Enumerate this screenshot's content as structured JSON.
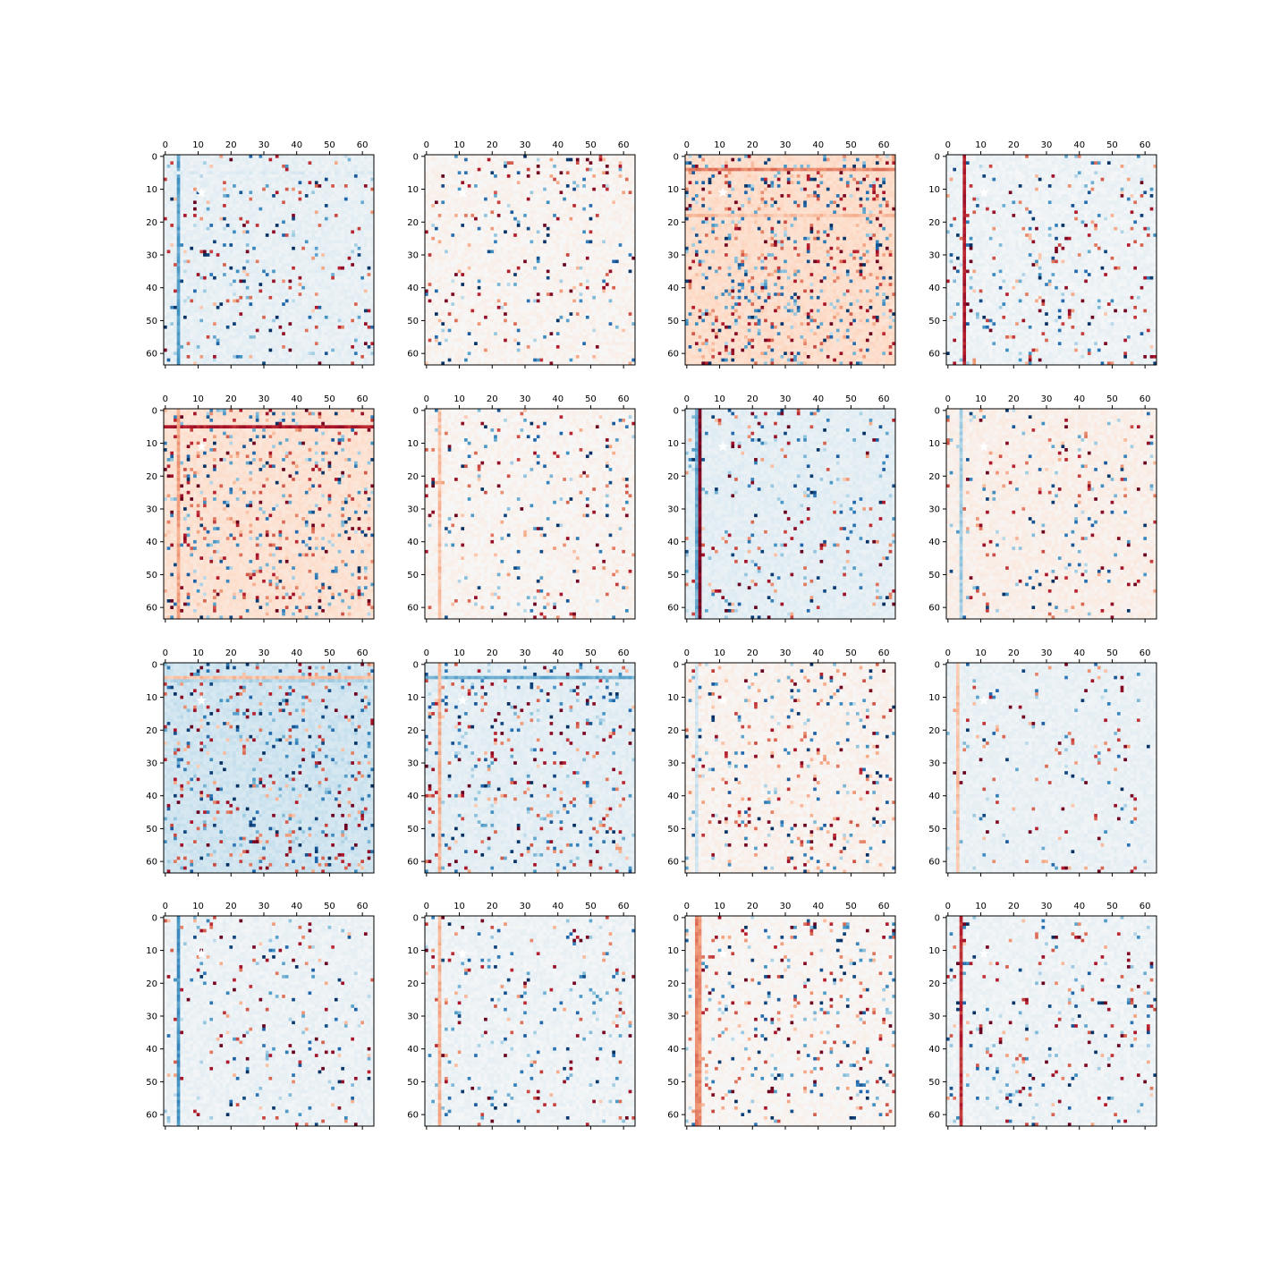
{
  "figure": {
    "background": "#ffffff",
    "grid_rows": 4,
    "grid_cols": 4
  },
  "chart_data": {
    "type": "heatmap",
    "count": 16,
    "matrix_size": [
      64,
      64
    ],
    "colormap": "RdBu_r",
    "colormap_stops": [
      "#053061",
      "#2166ac",
      "#4393c3",
      "#92c5de",
      "#d1e5f0",
      "#f7f7f7",
      "#fddbc7",
      "#f4a582",
      "#d6604d",
      "#b2182b",
      "#67001f"
    ],
    "value_range": [
      -1,
      1
    ],
    "x_axis_position": "top",
    "x_ticks": [
      0,
      10,
      20,
      30,
      40,
      50,
      60
    ],
    "y_ticks": [
      0,
      10,
      20,
      30,
      40,
      50,
      60
    ],
    "x_tick_labels": [
      "0",
      "10",
      "20",
      "30",
      "40",
      "50",
      "60"
    ],
    "y_tick_labels": [
      "0",
      "10",
      "20",
      "30",
      "40",
      "50",
      "60"
    ],
    "grid": false,
    "marker": "white star near (11, 11)",
    "panels": [
      {
        "row": 1,
        "col": 1,
        "base": -0.08,
        "density": 0.07,
        "seed": 11,
        "stripes": [
          {
            "dir": "col",
            "index": 4,
            "value": -0.55
          },
          {
            "dir": "row",
            "index": 5,
            "value": -0.12
          }
        ]
      },
      {
        "row": 1,
        "col": 2,
        "base": 0.03,
        "density": 0.06,
        "seed": 23,
        "stripes": []
      },
      {
        "row": 1,
        "col": 3,
        "base": 0.18,
        "density": 0.16,
        "seed": 37,
        "stripes": [
          {
            "dir": "row",
            "index": 4,
            "value": 0.5
          },
          {
            "dir": "row",
            "index": 18,
            "value": 0.3
          }
        ]
      },
      {
        "row": 1,
        "col": 4,
        "base": -0.05,
        "density": 0.07,
        "seed": 41,
        "stripes": [
          {
            "dir": "col",
            "index": 5,
            "value": 0.8
          }
        ]
      },
      {
        "row": 2,
        "col": 1,
        "base": 0.15,
        "density": 0.13,
        "seed": 53,
        "stripes": [
          {
            "dir": "row",
            "index": 5,
            "value": 0.8
          },
          {
            "dir": "col",
            "index": 4,
            "value": 0.4
          }
        ]
      },
      {
        "row": 2,
        "col": 2,
        "base": 0.03,
        "density": 0.06,
        "seed": 67,
        "stripes": [
          {
            "dir": "col",
            "index": 4,
            "value": 0.3
          }
        ]
      },
      {
        "row": 2,
        "col": 3,
        "base": -0.1,
        "density": 0.07,
        "seed": 71,
        "stripes": [
          {
            "dir": "col",
            "index": 4,
            "value": 0.95
          },
          {
            "dir": "col",
            "index": 3,
            "value": -0.5
          }
        ]
      },
      {
        "row": 2,
        "col": 4,
        "base": 0.06,
        "density": 0.06,
        "seed": 83,
        "stripes": [
          {
            "dir": "col",
            "index": 4,
            "value": -0.35
          }
        ]
      },
      {
        "row": 3,
        "col": 1,
        "base": -0.2,
        "density": 0.12,
        "seed": 97,
        "stripes": [
          {
            "dir": "row",
            "index": 4,
            "value": 0.3
          },
          {
            "dir": "row",
            "index": 5,
            "value": -0.3
          }
        ]
      },
      {
        "row": 3,
        "col": 2,
        "base": -0.1,
        "density": 0.1,
        "seed": 101,
        "stripes": [
          {
            "dir": "row",
            "index": 4,
            "value": -0.5
          },
          {
            "dir": "col",
            "index": 4,
            "value": 0.35
          }
        ]
      },
      {
        "row": 3,
        "col": 3,
        "base": 0.04,
        "density": 0.08,
        "seed": 113,
        "stripes": [
          {
            "dir": "col",
            "index": 3,
            "value": -0.2
          }
        ]
      },
      {
        "row": 3,
        "col": 4,
        "base": -0.07,
        "density": 0.04,
        "seed": 127,
        "stripes": [
          {
            "dir": "col",
            "index": 3,
            "value": 0.3
          }
        ]
      },
      {
        "row": 4,
        "col": 1,
        "base": -0.06,
        "density": 0.06,
        "seed": 131,
        "stripes": [
          {
            "dir": "col",
            "index": 4,
            "value": -0.6
          }
        ]
      },
      {
        "row": 4,
        "col": 2,
        "base": -0.05,
        "density": 0.06,
        "seed": 149,
        "stripes": [
          {
            "dir": "col",
            "index": 4,
            "value": 0.35
          }
        ]
      },
      {
        "row": 4,
        "col": 3,
        "base": 0.02,
        "density": 0.08,
        "seed": 151,
        "stripes": [
          {
            "dir": "col",
            "index": 3,
            "value": 0.5
          },
          {
            "dir": "col",
            "index": 4,
            "value": 0.45
          }
        ]
      },
      {
        "row": 4,
        "col": 4,
        "base": -0.05,
        "density": 0.06,
        "seed": 163,
        "stripes": [
          {
            "dir": "col",
            "index": 4,
            "value": 0.75
          }
        ]
      }
    ]
  }
}
